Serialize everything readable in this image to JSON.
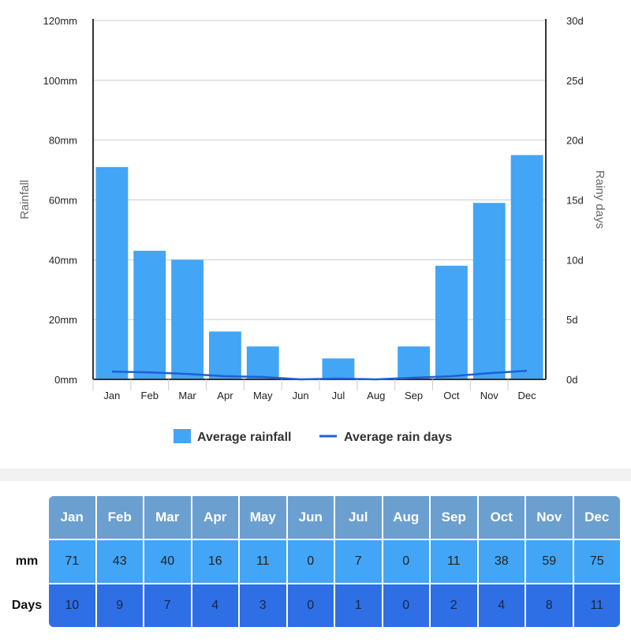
{
  "chart_data": {
    "type": "bar",
    "categories": [
      "Jan",
      "Feb",
      "Mar",
      "Apr",
      "May",
      "Jun",
      "Jul",
      "Aug",
      "Sep",
      "Oct",
      "Nov",
      "Dec"
    ],
    "series": [
      {
        "name": "Average rainfall",
        "type": "bar",
        "values": [
          71,
          43,
          40,
          16,
          11,
          0,
          7,
          0,
          11,
          38,
          59,
          75
        ],
        "color": "#42a5f5"
      },
      {
        "name": "Average rain days",
        "type": "line",
        "values": [
          10,
          9,
          7,
          4,
          3,
          0,
          1,
          0,
          2,
          4,
          8,
          11
        ],
        "color": "#1f5fd6"
      }
    ],
    "ylabel": "Rainfall",
    "y2label": "Rainy days",
    "ylim": [
      0,
      120
    ],
    "y2lim": [
      0,
      30
    ],
    "yticks": [
      "0mm",
      "20mm",
      "40mm",
      "60mm",
      "80mm",
      "100mm",
      "120mm"
    ],
    "y2ticks": [
      "0d",
      "5d",
      "10d",
      "15d",
      "20d",
      "25d",
      "30d"
    ],
    "grid": true,
    "legend": "bottom"
  },
  "table": {
    "row_labels": [
      "mm",
      "Days"
    ],
    "months": [
      "Jan",
      "Feb",
      "Mar",
      "Apr",
      "May",
      "Jun",
      "Jul",
      "Aug",
      "Sep",
      "Oct",
      "Nov",
      "Dec"
    ],
    "mm": [
      "71",
      "43",
      "40",
      "16",
      "11",
      "0",
      "7",
      "0",
      "11",
      "38",
      "59",
      "75"
    ],
    "days": [
      "10",
      "9",
      "7",
      "4",
      "3",
      "0",
      "1",
      "0",
      "2",
      "4",
      "8",
      "11"
    ]
  }
}
